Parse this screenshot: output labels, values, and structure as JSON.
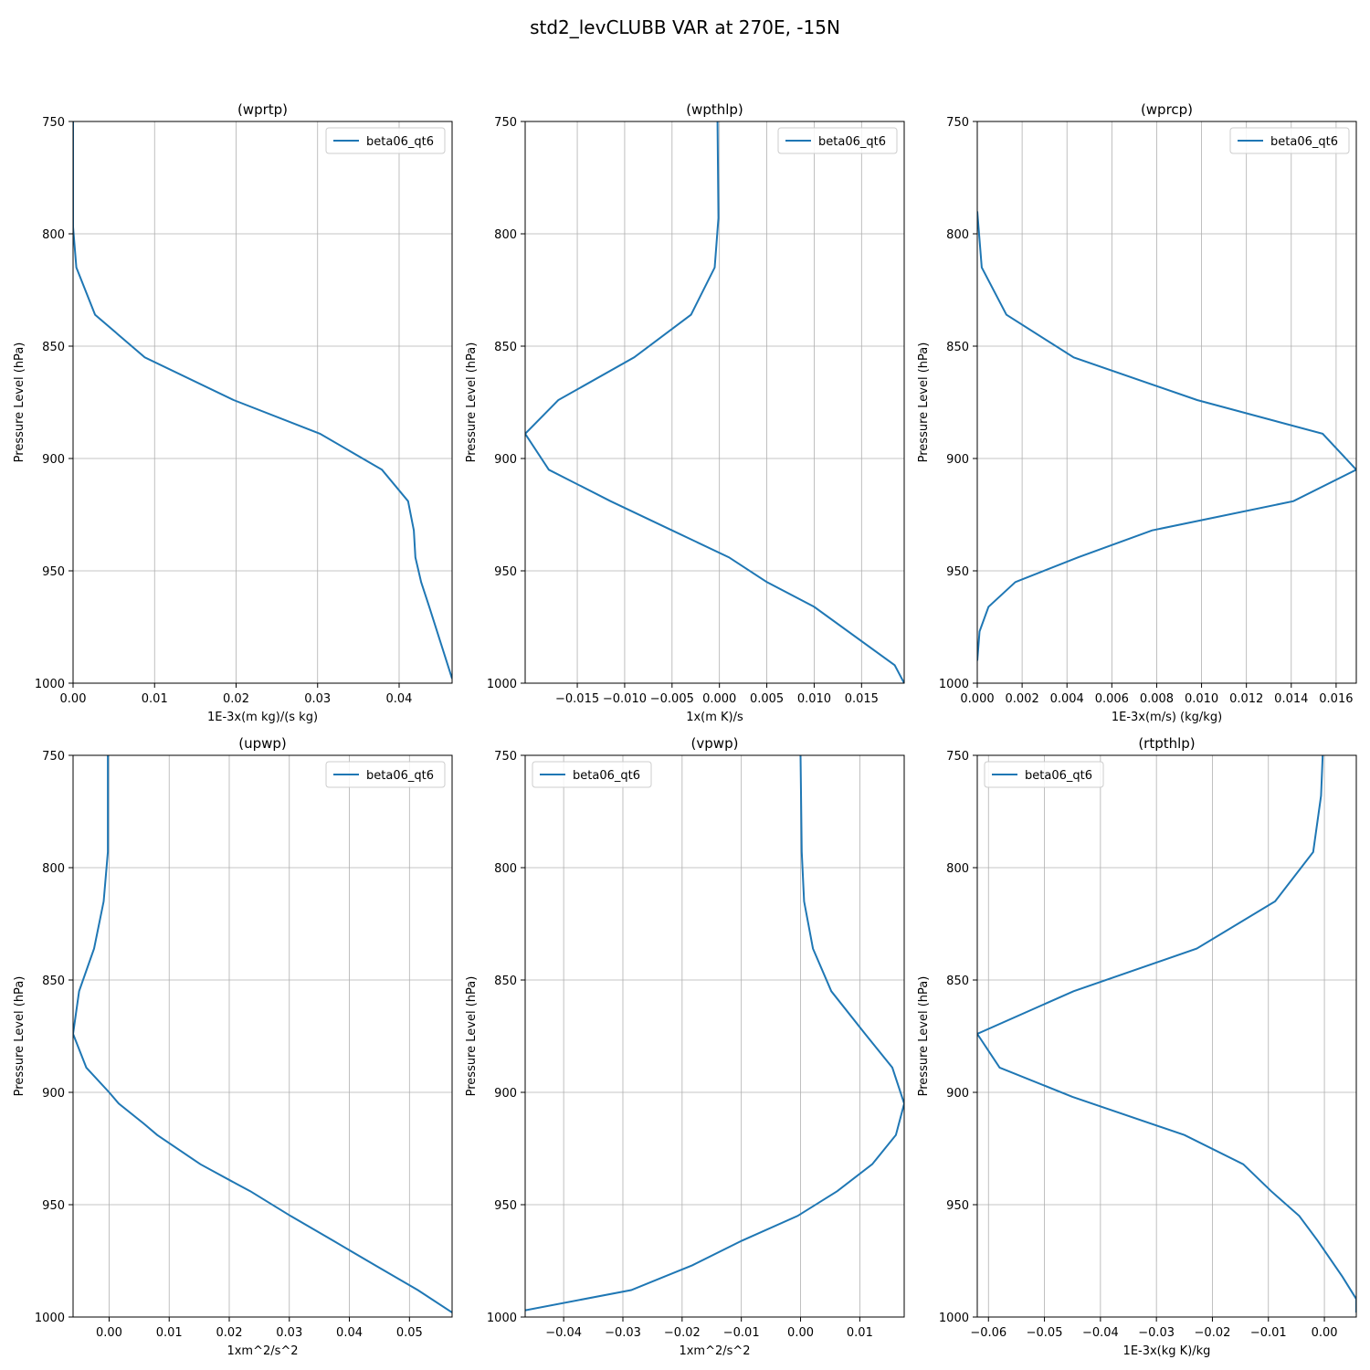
{
  "figure": {
    "title": "std2_levCLUBB VAR at 270E, -15N"
  },
  "styles": {
    "line_color": "#1f77b4",
    "grid_color": "#b0b0b0",
    "axis_color": "#000000"
  },
  "chart_data": [
    {
      "type": "line",
      "title": "(wprtp)",
      "xlabel": "1E-3x(m kg)/(s kg)",
      "ylabel": "Pressure Level (hPa)",
      "xlim": [
        0.0,
        0.0465
      ],
      "ylim": [
        1000,
        750
      ],
      "xticks": [
        0.0,
        0.01,
        0.02,
        0.03,
        0.04
      ],
      "xtick_labels": [
        "0.00",
        "0.01",
        "0.02",
        "0.03",
        "0.04"
      ],
      "yticks": [
        750,
        800,
        850,
        900,
        950,
        1000
      ],
      "ytick_labels": [
        "750",
        "800",
        "850",
        "900",
        "950",
        "1000"
      ],
      "grid": true,
      "legend_position": "upper-right",
      "series": [
        {
          "name": "beta06_qt6",
          "points": [
            [
              0.0,
              750
            ],
            [
              0.0,
              797
            ],
            [
              0.0004,
              815
            ],
            [
              0.0027,
              836
            ],
            [
              0.0088,
              855
            ],
            [
              0.0197,
              874
            ],
            [
              0.0303,
              889
            ],
            [
              0.0379,
              905
            ],
            [
              0.0411,
              919
            ],
            [
              0.0418,
              932
            ],
            [
              0.042,
              944
            ],
            [
              0.0427,
              955
            ],
            [
              0.0437,
              966
            ],
            [
              0.0465,
              998
            ]
          ]
        }
      ]
    },
    {
      "type": "line",
      "title": "(wpthlp)",
      "xlabel": "1x(m K)/s",
      "ylabel": "Pressure Level (hPa)",
      "xlim": [
        -0.0205,
        0.0195
      ],
      "ylim": [
        1000,
        750
      ],
      "xticks": [
        -0.015,
        -0.01,
        -0.005,
        0.0,
        0.005,
        0.01,
        0.015
      ],
      "xtick_labels": [
        "−0.015",
        "−0.010",
        "−0.005",
        "0.000",
        "0.005",
        "0.010",
        "0.015"
      ],
      "yticks": [
        750,
        800,
        850,
        900,
        950,
        1000
      ],
      "ytick_labels": [
        "750",
        "800",
        "850",
        "900",
        "950",
        "1000"
      ],
      "grid": true,
      "legend_position": "upper-right",
      "series": [
        {
          "name": "beta06_qt6",
          "points": [
            [
              -0.0002,
              750
            ],
            [
              -0.0001,
              793
            ],
            [
              -0.0005,
              815
            ],
            [
              -0.003,
              836
            ],
            [
              -0.009,
              855
            ],
            [
              -0.017,
              874
            ],
            [
              -0.0205,
              889
            ],
            [
              -0.018,
              905
            ],
            [
              -0.0115,
              919
            ],
            [
              -0.005,
              932
            ],
            [
              0.001,
              944
            ],
            [
              0.005,
              955
            ],
            [
              0.01,
              966
            ],
            [
              0.0185,
              992
            ],
            [
              0.0195,
              1000
            ]
          ]
        }
      ]
    },
    {
      "type": "line",
      "title": "(wprcp)",
      "xlabel": "1E-3x(m/s) (kg/kg)",
      "ylabel": "Pressure Level (hPa)",
      "xlim": [
        0.0,
        0.0169
      ],
      "ylim": [
        1000,
        750
      ],
      "xticks": [
        0.0,
        0.002,
        0.004,
        0.006,
        0.008,
        0.01,
        0.012,
        0.014,
        0.016
      ],
      "xtick_labels": [
        "0.000",
        "0.002",
        "0.004",
        "0.006",
        "0.008",
        "0.010",
        "0.012",
        "0.014",
        "0.016"
      ],
      "yticks": [
        750,
        800,
        850,
        900,
        950,
        1000
      ],
      "ytick_labels": [
        "750",
        "800",
        "850",
        "900",
        "950",
        "1000"
      ],
      "grid": true,
      "legend_position": "upper-right",
      "series": [
        {
          "name": "beta06_qt6",
          "points": [
            [
              0.0,
              790
            ],
            [
              0.0002,
              815
            ],
            [
              0.0013,
              836
            ],
            [
              0.0043,
              855
            ],
            [
              0.0098,
              874
            ],
            [
              0.0154,
              889
            ],
            [
              0.0169,
              905
            ],
            [
              0.0141,
              919
            ],
            [
              0.0078,
              932
            ],
            [
              0.0045,
              944
            ],
            [
              0.0017,
              955
            ],
            [
              0.0005,
              966
            ],
            [
              0.0001,
              977
            ],
            [
              0.0,
              990
            ]
          ]
        }
      ]
    },
    {
      "type": "line",
      "title": "(upwp)",
      "xlabel": "1xm^2/s^2",
      "ylabel": "Pressure Level (hPa)",
      "xlim": [
        -0.006,
        0.0571
      ],
      "ylim": [
        1000,
        750
      ],
      "xticks": [
        0.0,
        0.01,
        0.02,
        0.03,
        0.04,
        0.05
      ],
      "xtick_labels": [
        "0.00",
        "0.01",
        "0.02",
        "0.03",
        "0.04",
        "0.05"
      ],
      "yticks": [
        750,
        800,
        850,
        900,
        950,
        1000
      ],
      "ytick_labels": [
        "750",
        "800",
        "850",
        "900",
        "950",
        "1000"
      ],
      "grid": true,
      "legend_position": "upper-right",
      "series": [
        {
          "name": "beta06_qt6",
          "points": [
            [
              -0.0002,
              750
            ],
            [
              -0.0002,
              793
            ],
            [
              -0.0009,
              815
            ],
            [
              -0.0025,
              836
            ],
            [
              -0.005,
              855
            ],
            [
              -0.006,
              874
            ],
            [
              -0.0038,
              889
            ],
            [
              0.0,
              900
            ],
            [
              0.0016,
              905
            ],
            [
              0.0058,
              914
            ],
            [
              0.008,
              919
            ],
            [
              0.0152,
              932
            ],
            [
              0.0214,
              941
            ],
            [
              0.0235,
              944
            ],
            [
              0.0302,
              955
            ],
            [
              0.0373,
              966
            ],
            [
              0.0443,
              977
            ],
            [
              0.0514,
              988
            ],
            [
              0.0571,
              998
            ]
          ]
        }
      ]
    },
    {
      "type": "line",
      "title": "(vpwp)",
      "xlabel": "1xm^2/s^2",
      "ylabel": "Pressure Level (hPa)",
      "xlim": [
        -0.0465,
        0.0175
      ],
      "ylim": [
        1000,
        750
      ],
      "xticks": [
        -0.04,
        -0.03,
        -0.02,
        -0.01,
        0.0,
        0.01
      ],
      "xtick_labels": [
        "−0.04",
        "−0.03",
        "−0.02",
        "−0.01",
        "0.00",
        "0.01"
      ],
      "yticks": [
        750,
        800,
        850,
        900,
        950,
        1000
      ],
      "ytick_labels": [
        "750",
        "800",
        "850",
        "900",
        "950",
        "1000"
      ],
      "grid": true,
      "legend_position": "upper-left",
      "series": [
        {
          "name": "beta06_qt6",
          "points": [
            [
              0.0,
              750
            ],
            [
              0.0002,
              793
            ],
            [
              0.0006,
              815
            ],
            [
              0.0021,
              836
            ],
            [
              0.0052,
              855
            ],
            [
              0.0109,
              874
            ],
            [
              0.0155,
              889
            ],
            [
              0.0175,
              905
            ],
            [
              0.0161,
              919
            ],
            [
              0.0121,
              932
            ],
            [
              0.0062,
              944
            ],
            [
              -0.0005,
              955
            ],
            [
              -0.0099,
              966
            ],
            [
              -0.0183,
              977
            ],
            [
              -0.0286,
              988
            ],
            [
              -0.0465,
              997
            ]
          ]
        }
      ]
    },
    {
      "type": "line",
      "title": "(rtpthlp)",
      "xlabel": "1E-3x(kg K)/kg",
      "ylabel": "Pressure Level (hPa)",
      "xlim": [
        -0.062,
        0.0057
      ],
      "ylim": [
        1000,
        750
      ],
      "xticks": [
        -0.06,
        -0.05,
        -0.04,
        -0.03,
        -0.02,
        -0.01,
        0.0
      ],
      "xtick_labels": [
        "−0.06",
        "−0.05",
        "−0.04",
        "−0.03",
        "−0.02",
        "−0.01",
        "0.00"
      ],
      "yticks": [
        750,
        800,
        850,
        900,
        950,
        1000
      ],
      "ytick_labels": [
        "750",
        "800",
        "850",
        "900",
        "950",
        "1000"
      ],
      "grid": true,
      "legend_position": "upper-left",
      "series": [
        {
          "name": "beta06_qt6",
          "points": [
            [
              -0.0003,
              750
            ],
            [
              -0.0006,
              768
            ],
            [
              -0.002,
              793
            ],
            [
              -0.0088,
              815
            ],
            [
              -0.0228,
              836
            ],
            [
              -0.0448,
              855
            ],
            [
              -0.062,
              874
            ],
            [
              -0.058,
              889
            ],
            [
              -0.045,
              902
            ],
            [
              -0.025,
              919
            ],
            [
              -0.0145,
              932
            ],
            [
              -0.0095,
              944
            ],
            [
              -0.0045,
              955
            ],
            [
              -0.0012,
              966
            ],
            [
              0.0032,
              982
            ],
            [
              0.0057,
              992
            ],
            [
              0.0057,
              998
            ]
          ]
        }
      ]
    }
  ]
}
